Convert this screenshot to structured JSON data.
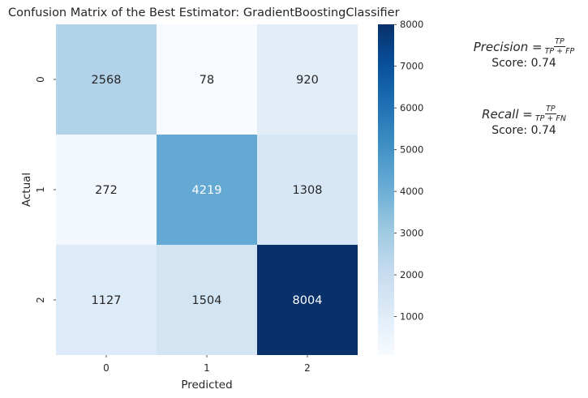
{
  "chart_data": {
    "type": "heatmap",
    "title": "Confusion Matrix of the Best Estimator: GradientBoostingClassifier",
    "xlabel": "Predicted",
    "ylabel": "Actual",
    "x_tick_labels": [
      "0",
      "1",
      "2"
    ],
    "y_tick_labels": [
      "0",
      "1",
      "2"
    ],
    "values": [
      [
        2568,
        78,
        920
      ],
      [
        272,
        4219,
        1308
      ],
      [
        1127,
        1504,
        8004
      ]
    ],
    "colormap": "Blues",
    "colorbar": {
      "range": [
        78,
        8004
      ],
      "ticks": [
        1000,
        2000,
        3000,
        4000,
        5000,
        6000,
        7000,
        8000
      ]
    }
  },
  "metrics": {
    "precision": {
      "lhs": "Precision =",
      "num": "TP",
      "den": "TP + FP",
      "score": "Score: 0.74"
    },
    "recall": {
      "lhs": "Recall =",
      "num": "TP",
      "den": "TP + FN",
      "score": "Score: 0.74"
    }
  }
}
